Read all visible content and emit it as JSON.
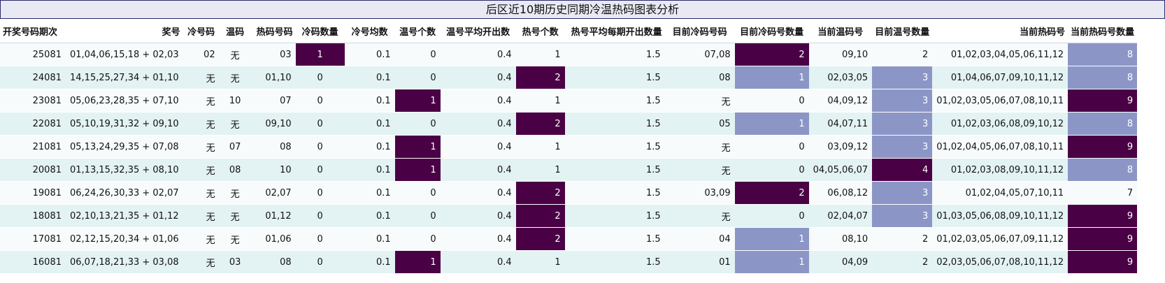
{
  "title": "后区近10期历史同期冷温热码图表分析",
  "colors": {
    "dark": "#4a0045",
    "mid": "#8c96c6",
    "row_a": "#f7fbfc",
    "row_b": "#e3f2f3"
  },
  "columns": [
    "开奖号码期次",
    "奖号",
    "冷号码",
    "温码",
    "热码号码",
    "冷码数量",
    "冷号均数",
    "温号个数",
    "温号平均开出数",
    "热号个数",
    "热号平均每期开出数量",
    "目前冷码号码",
    "目前冷码号数量",
    "当前温码号",
    "目前温号数量",
    "当前热码号",
    "当前热码号数量"
  ],
  "rows": [
    {
      "cells": [
        "25081",
        "01,04,06,15,18 + 02,03",
        "02",
        "无",
        "03",
        "1",
        "0.1",
        "0",
        "0.4",
        "1",
        "1.5",
        "07,08",
        "2",
        "09,10",
        "2",
        "01,02,03,04,05,06,11,12",
        "8"
      ]
    },
    {
      "cells": [
        "24081",
        "14,15,25,27,34 + 01,10",
        "无",
        "无",
        "01,10",
        "0",
        "0.1",
        "0",
        "0.4",
        "2",
        "1.5",
        "08",
        "1",
        "02,03,05",
        "3",
        "01,04,06,07,09,10,11,12",
        "8"
      ]
    },
    {
      "cells": [
        "23081",
        "05,06,23,28,35 + 07,10",
        "无",
        "10",
        "07",
        "0",
        "0.1",
        "1",
        "0.4",
        "1",
        "1.5",
        "无",
        "0",
        "04,09,12",
        "3",
        "01,02,03,05,06,07,08,10,11",
        "9"
      ]
    },
    {
      "cells": [
        "22081",
        "05,10,19,31,32 + 09,10",
        "无",
        "无",
        "09,10",
        "0",
        "0.1",
        "0",
        "0.4",
        "2",
        "1.5",
        "05",
        "1",
        "04,07,11",
        "3",
        "01,02,03,06,08,09,10,12",
        "8"
      ]
    },
    {
      "cells": [
        "21081",
        "05,13,24,29,35 + 07,08",
        "无",
        "07",
        "08",
        "0",
        "0.1",
        "1",
        "0.4",
        "1",
        "1.5",
        "无",
        "0",
        "03,09,12",
        "3",
        "01,02,04,05,06,07,08,10,11",
        "9"
      ]
    },
    {
      "cells": [
        "20081",
        "01,13,15,32,35 + 08,10",
        "无",
        "08",
        "10",
        "0",
        "0.1",
        "1",
        "0.4",
        "1",
        "1.5",
        "无",
        "0",
        "04,05,06,07",
        "4",
        "01,02,03,08,09,10,11,12",
        "8"
      ]
    },
    {
      "cells": [
        "19081",
        "06,24,26,30,33 + 02,07",
        "无",
        "无",
        "02,07",
        "0",
        "0.1",
        "0",
        "0.4",
        "2",
        "1.5",
        "03,09",
        "2",
        "06,08,12",
        "3",
        "01,02,04,05,07,10,11",
        "7"
      ]
    },
    {
      "cells": [
        "18081",
        "02,10,13,21,35 + 01,12",
        "无",
        "无",
        "01,12",
        "0",
        "0.1",
        "0",
        "0.4",
        "2",
        "1.5",
        "无",
        "0",
        "02,04,07",
        "3",
        "01,03,05,06,08,09,10,11,12",
        "9"
      ]
    },
    {
      "cells": [
        "17081",
        "02,12,15,20,34 + 01,06",
        "无",
        "无",
        "01,06",
        "0",
        "0.1",
        "0",
        "0.4",
        "2",
        "1.5",
        "04",
        "1",
        "08,10",
        "2",
        "01,02,03,05,06,07,09,11,12",
        "9"
      ]
    },
    {
      "cells": [
        "16081",
        "06,07,18,21,33 + 03,08",
        "无",
        "03",
        "08",
        "0",
        "0.1",
        "1",
        "0.4",
        "1",
        "1.5",
        "01",
        "1",
        "04,09",
        "2",
        "02,03,05,06,07,08,10,11,12",
        "9"
      ]
    }
  ]
}
